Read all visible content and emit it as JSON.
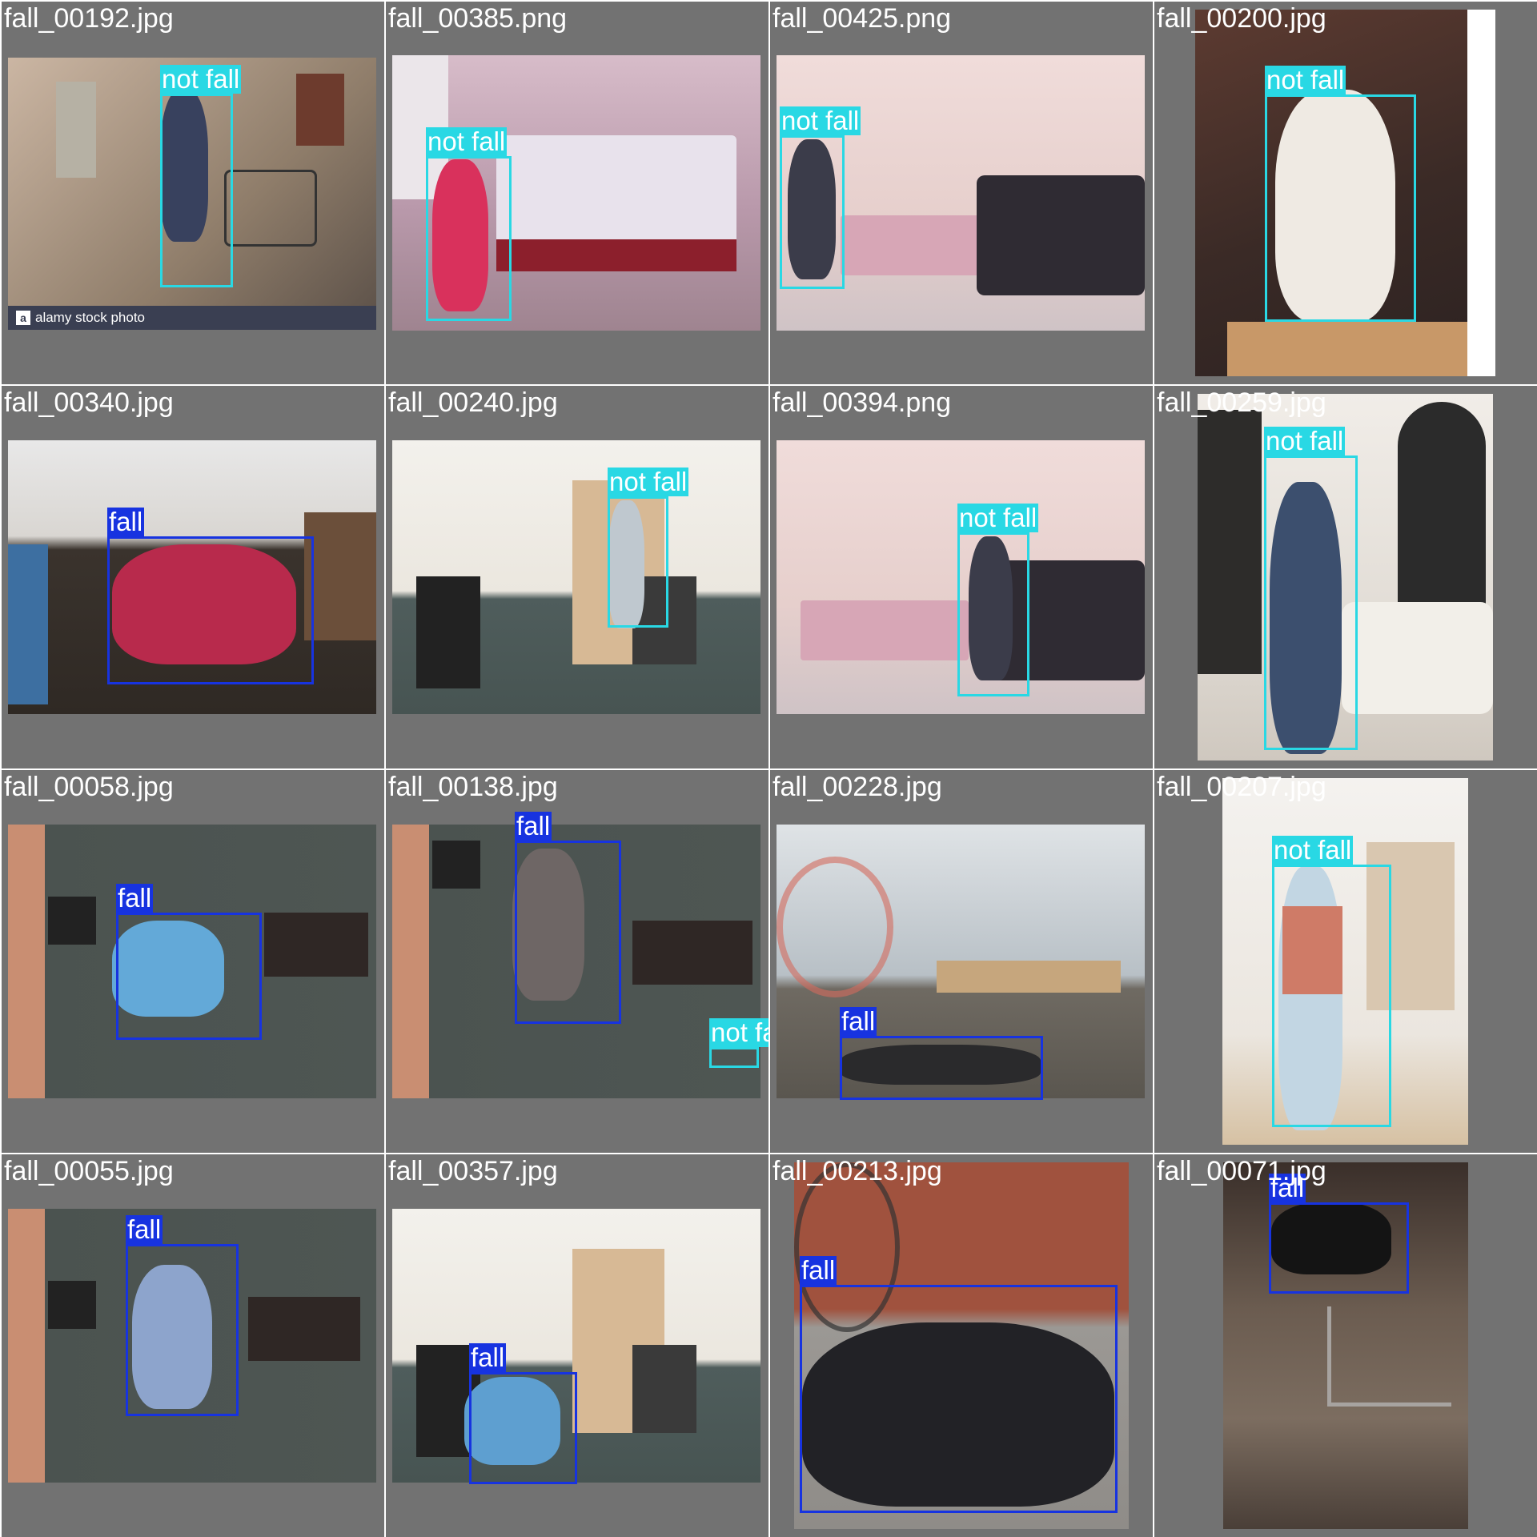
{
  "tiles": [
    {
      "file": "fall_00192.jpg",
      "labels": [
        "not fall"
      ],
      "watermark": "alamy stock photo"
    },
    {
      "file": "fall_00385.png",
      "labels": [
        "not fall"
      ]
    },
    {
      "file": "fall_00425.png",
      "labels": [
        "not fall"
      ]
    },
    {
      "file": "fall_00200.jpg",
      "labels": [
        "not fall"
      ]
    },
    {
      "file": "fall_00340.jpg",
      "labels": [
        "fall"
      ]
    },
    {
      "file": "fall_00240.jpg",
      "labels": [
        "not fall"
      ]
    },
    {
      "file": "fall_00394.png",
      "labels": [
        "not fall"
      ]
    },
    {
      "file": "fall_00259.jpg",
      "labels": [
        "not fall"
      ]
    },
    {
      "file": "fall_00058.jpg",
      "labels": [
        "fall"
      ]
    },
    {
      "file": "fall_00138.jpg",
      "labels": [
        "fall",
        "not fall"
      ]
    },
    {
      "file": "fall_00228.jpg",
      "labels": [
        "fall"
      ]
    },
    {
      "file": "fall_00207.jpg",
      "labels": [
        "not fall"
      ]
    },
    {
      "file": "fall_00055.jpg",
      "labels": [
        "fall"
      ]
    },
    {
      "file": "fall_00357.jpg",
      "labels": [
        "fall"
      ]
    },
    {
      "file": "fall_00213.jpg",
      "labels": [
        "fall"
      ]
    },
    {
      "file": "fall_00071.jpg",
      "labels": [
        "fall"
      ]
    }
  ],
  "colors": {
    "fall": "#1733e0",
    "not_fall": "#29d8e4",
    "tile_background": "#727272"
  }
}
